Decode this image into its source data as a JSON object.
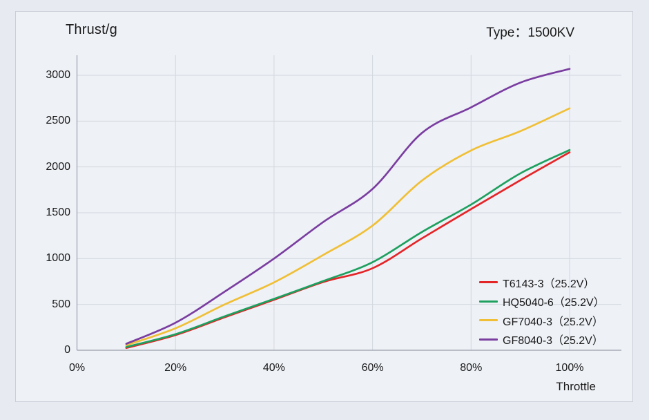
{
  "page": {
    "background_outer": "#e7ebf1",
    "background_panel": "#eef1f6",
    "panel_border_color": "#c9ced8",
    "gridline_color": "#d3d7df",
    "axis_color": "#a7acb6",
    "text_color": "#1a1a1a"
  },
  "header": {
    "title": "Thrust/g",
    "type_label": "Type：1500KV"
  },
  "chart_data": {
    "type": "line",
    "title": "Thrust/g",
    "subtitle": "Type：1500KV",
    "x": [
      10,
      20,
      30,
      40,
      50,
      60,
      70,
      80,
      90,
      100
    ],
    "x_axis": {
      "label": "Throttle",
      "tick_values": [
        0,
        20,
        40,
        60,
        80,
        100
      ],
      "tick_labels": [
        "0%",
        "20%",
        "40%",
        "60%",
        "80%",
        "100%"
      ],
      "range": [
        0,
        100
      ]
    },
    "y_axis": {
      "label": "Thrust/g",
      "tick_values": [
        0,
        500,
        1000,
        1500,
        2000,
        2500,
        3000
      ],
      "tick_labels": [
        "0",
        "500",
        "1000",
        "1500",
        "2000",
        "2500",
        "3000"
      ],
      "range": [
        0,
        3000
      ]
    },
    "grid": true,
    "legend_position": "lower-right",
    "series": [
      {
        "name": "T6143-3（25.2V）",
        "color": "#e42528",
        "values": [
          25,
          165,
          360,
          550,
          745,
          895,
          1220,
          1540,
          1855,
          2160
        ]
      },
      {
        "name": "HQ5040-6（25.2V）",
        "color": "#1ea05f",
        "values": [
          35,
          175,
          370,
          560,
          755,
          960,
          1290,
          1590,
          1930,
          2185
        ]
      },
      {
        "name": "GF7040-3（25.2V）",
        "color": "#f0bf35",
        "values": [
          55,
          240,
          500,
          740,
          1040,
          1360,
          1850,
          2180,
          2390,
          2640
        ]
      },
      {
        "name": "GF8040-3（25.2V）",
        "color": "#7a3da0",
        "values": [
          70,
          300,
          640,
          1000,
          1400,
          1760,
          2370,
          2650,
          2920,
          3070
        ]
      }
    ]
  }
}
